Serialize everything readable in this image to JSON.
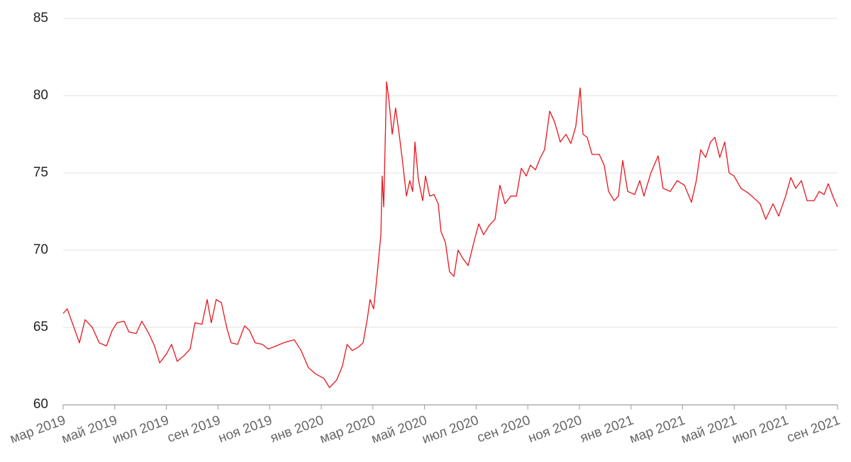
{
  "chart_data": {
    "type": "line",
    "color": "#e8141c",
    "grid": true,
    "xlim": [
      0,
      30
    ],
    "xticks": [
      {
        "value": 0,
        "label": "мар 2019"
      },
      {
        "value": 2,
        "label": "май 2019"
      },
      {
        "value": 4,
        "label": "июл 2019"
      },
      {
        "value": 6,
        "label": "сен 2019"
      },
      {
        "value": 8,
        "label": "ноя 2019"
      },
      {
        "value": 10,
        "label": "янв 2020"
      },
      {
        "value": 12,
        "label": "мар 2020"
      },
      {
        "value": 14,
        "label": "май 2020"
      },
      {
        "value": 16,
        "label": "июл 2020"
      },
      {
        "value": 18,
        "label": "сен 2020"
      },
      {
        "value": 20,
        "label": "ноя 2020"
      },
      {
        "value": 22,
        "label": "янв 2021"
      },
      {
        "value": 24,
        "label": "мар 2021"
      },
      {
        "value": 26,
        "label": "май 2021"
      },
      {
        "value": 28,
        "label": "июл 2021"
      },
      {
        "value": 30,
        "label": "сен 2021"
      }
    ],
    "ylim": [
      60,
      85
    ],
    "yticks": [
      60,
      65,
      70,
      75,
      80,
      85
    ],
    "x": [
      0,
      0.16,
      0.44,
      0.63,
      0.85,
      1.13,
      1.4,
      1.68,
      1.9,
      2.09,
      2.36,
      2.55,
      2.83,
      3.05,
      3.32,
      3.54,
      3.74,
      4.01,
      4.2,
      4.42,
      4.7,
      4.92,
      5.11,
      5.38,
      5.58,
      5.74,
      5.93,
      6.13,
      6.35,
      6.51,
      6.76,
      7.03,
      7.22,
      7.44,
      7.72,
      7.94,
      8.26,
      8.54,
      8.95,
      9.22,
      9.5,
      9.77,
      10.1,
      10.32,
      10.6,
      10.82,
      11.0,
      11.2,
      11.42,
      11.62,
      11.78,
      11.89,
      12.03,
      12.17,
      12.31,
      12.36,
      12.42,
      12.53,
      12.61,
      12.75,
      12.88,
      13.02,
      13.13,
      13.3,
      13.43,
      13.54,
      13.63,
      13.76,
      13.93,
      14.04,
      14.2,
      14.37,
      14.53,
      14.64,
      14.81,
      14.97,
      15.14,
      15.3,
      15.47,
      15.69,
      15.91,
      16.1,
      16.29,
      16.51,
      16.73,
      16.92,
      17.12,
      17.34,
      17.56,
      17.75,
      17.94,
      18.1,
      18.3,
      18.49,
      18.65,
      18.85,
      19.04,
      19.26,
      19.48,
      19.67,
      19.86,
      20.03,
      20.14,
      20.3,
      20.49,
      20.77,
      20.96,
      21.13,
      21.35,
      21.51,
      21.68,
      21.87,
      22.14,
      22.34,
      22.5,
      22.77,
      23.05,
      23.24,
      23.52,
      23.79,
      24.07,
      24.34,
      24.53,
      24.7,
      24.89,
      25.08,
      25.25,
      25.44,
      25.63,
      25.8,
      25.99,
      26.26,
      26.54,
      26.81,
      27.0,
      27.22,
      27.5,
      27.72,
      27.99,
      28.19,
      28.38,
      28.6,
      28.82,
      29.09,
      29.29,
      29.48,
      29.64,
      29.84,
      30
    ],
    "values": [
      65.9,
      66.2,
      64.9,
      64.0,
      65.5,
      65.0,
      64.0,
      63.8,
      64.8,
      65.3,
      65.4,
      64.7,
      64.6,
      65.4,
      64.6,
      63.8,
      62.7,
      63.3,
      63.9,
      62.8,
      63.2,
      63.6,
      65.3,
      65.2,
      66.8,
      65.3,
      66.8,
      66.6,
      64.9,
      64.0,
      63.9,
      65.1,
      64.8,
      64.0,
      63.9,
      63.6,
      63.8,
      64.0,
      64.2,
      63.5,
      62.4,
      62.0,
      61.7,
      61.1,
      61.6,
      62.5,
      63.9,
      63.5,
      63.7,
      64.0,
      65.5,
      66.8,
      66.2,
      68.5,
      71.0,
      74.8,
      72.8,
      80.9,
      79.9,
      77.5,
      79.2,
      77.5,
      76.0,
      73.5,
      74.5,
      73.8,
      77.0,
      74.6,
      73.2,
      74.8,
      73.5,
      73.6,
      73.0,
      71.2,
      70.5,
      68.6,
      68.3,
      70.0,
      69.5,
      69.0,
      70.5,
      71.7,
      71.0,
      71.6,
      72.0,
      74.2,
      73.0,
      73.5,
      73.5,
      75.3,
      74.8,
      75.5,
      75.2,
      76.0,
      76.5,
      79.0,
      78.3,
      77.0,
      77.5,
      76.9,
      78.0,
      80.5,
      77.5,
      77.3,
      76.2,
      76.2,
      75.5,
      73.8,
      73.2,
      73.5,
      75.8,
      73.8,
      73.6,
      74.5,
      73.5,
      75.0,
      76.1,
      74.0,
      73.8,
      74.5,
      74.2,
      73.1,
      74.5,
      76.5,
      76.0,
      77.0,
      77.3,
      76.0,
      77.0,
      75.0,
      74.8,
      74.0,
      73.7,
      73.3,
      73.0,
      72.0,
      73.0,
      72.2,
      73.5,
      74.7,
      74.0,
      74.5,
      73.2,
      73.2,
      73.8,
      73.6,
      74.3,
      73.4,
      72.8
    ]
  }
}
